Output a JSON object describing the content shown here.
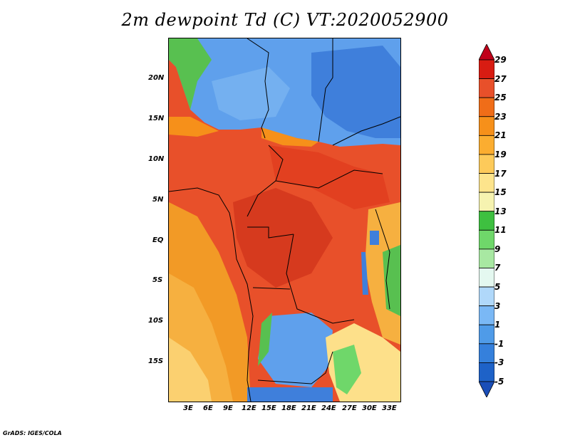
{
  "title": "2m dewpoint Td (C) VT:2020052900",
  "credit": "GrADS: IGES/COLA",
  "lat_labels": [
    "20N",
    "15N",
    "10N",
    "5N",
    "EQ",
    "5S",
    "10S",
    "15S"
  ],
  "lon_labels": [
    "3E",
    "6E",
    "9E",
    "12E",
    "15E",
    "18E",
    "21E",
    "24E",
    "27E",
    "30E",
    "33E"
  ],
  "colorbar": {
    "labels": [
      "29",
      "27",
      "25",
      "23",
      "21",
      "19",
      "17",
      "15",
      "13",
      "11",
      "9",
      "7",
      "5",
      "3",
      "1",
      "-1",
      "-3",
      "-5"
    ],
    "colors": [
      "#c0001a",
      "#d81c12",
      "#e8502a",
      "#f06d18",
      "#f6901a",
      "#fbad30",
      "#fdca5a",
      "#fde48c",
      "#f6f3b0",
      "#3ec040",
      "#6fd76a",
      "#a8e8a2",
      "#e4f8f0",
      "#b0d8fa",
      "#7ab8f5",
      "#4f9be8",
      "#3580dc",
      "#1e62c8",
      "#1a4eb8"
    ]
  },
  "map_colors": {
    "sahara_blue": "#5fa0ec",
    "sahara_dark": "#3f7fdb",
    "ocean_orange": "#f29a26",
    "ocean_light": "#fbc35a",
    "humid_red": "#e8502a",
    "deep_red": "#d63a1e",
    "south_green": "#58c050",
    "south_yellow": "#fde08a"
  }
}
